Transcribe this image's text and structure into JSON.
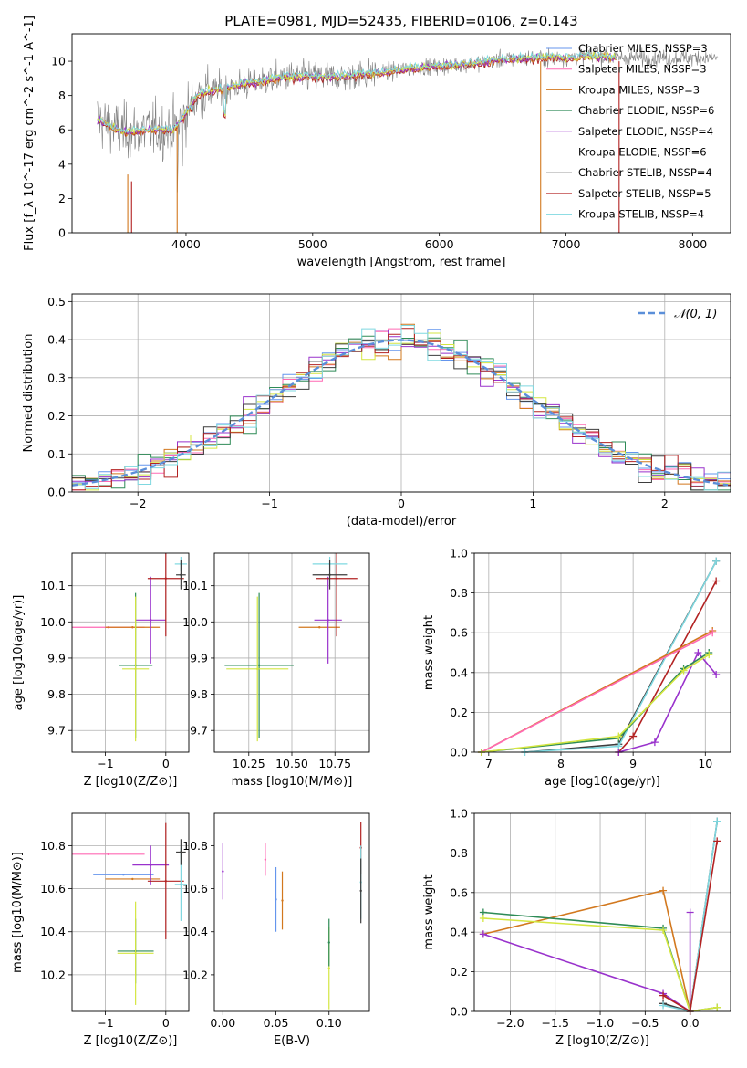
{
  "figure": {
    "title": "PLATE=0981, MJD=52435, FIBERID=0106, z=0.143"
  },
  "colors": {
    "Chabrier MILES": "#6495ed",
    "Salpeter MILES": "#ff69b4",
    "Kroupa MILES": "#d2781e",
    "Chabrier ELODIE": "#2e8b57",
    "Salpeter ELODIE": "#9932cc",
    "Kroupa ELODIE": "#d4e640",
    "Chabrier STELIB": "#3d3d3d",
    "Salpeter STELIB": "#b22222",
    "Kroupa STELIB": "#7fd8e0",
    "data": "#808080",
    "gaussian": "#5b8fd9"
  },
  "chart_data": [
    {
      "id": "spectrum",
      "type": "line",
      "title": "PLATE=0981, MJD=52435, FIBERID=0106, z=0.143",
      "xlabel": "wavelength [Angstrom, rest frame]",
      "ylabel": "Flux [f_λ 10^-17 erg cm^-2 s^-1 A^-1]",
      "xlim": [
        3100,
        8300
      ],
      "ylim": [
        0,
        11.6
      ],
      "xticks": [
        "4000",
        "5000",
        "6000",
        "7000",
        "8000"
      ],
      "yticks": [
        "0",
        "2",
        "4",
        "6",
        "8",
        "10"
      ],
      "legend_position": "right",
      "legend": [
        "Chabrier MILES, NSSP=3",
        "Salpeter MILES, NSSP=3",
        "Kroupa MILES, NSSP=3",
        "Chabrier ELODIE, NSSP=6",
        "Salpeter ELODIE, NSSP=4",
        "Kroupa ELODIE, NSSP=6",
        "Chabrier STELIB, NSSP=4",
        "Salpeter STELIB, NSSP=5",
        "Kroupa STELIB, NSSP=4"
      ],
      "continuum": {
        "x": [
          3300,
          3400,
          3500,
          3600,
          3700,
          3800,
          3900,
          4000,
          4100,
          4300,
          4500,
          4800,
          5000,
          5200,
          5500,
          5800,
          6000,
          6300,
          6500,
          6800,
          7000,
          7200,
          7400
        ],
        "y": [
          6.6,
          6.2,
          5.9,
          5.9,
          6.0,
          6.0,
          6.0,
          7.0,
          8.1,
          8.4,
          8.7,
          9.1,
          9.1,
          9.1,
          9.3,
          9.6,
          9.7,
          9.9,
          10.1,
          10.2,
          10.2,
          10.3,
          10.2
        ]
      },
      "data_span": [
        3300,
        8200
      ]
    },
    {
      "id": "residuals",
      "type": "line",
      "xlabel": "(data-model)/error",
      "ylabel": "Normed distribution",
      "xlim": [
        -2.5,
        2.5
      ],
      "ylim": [
        0,
        0.52
      ],
      "xticks": [
        "−2",
        "−1",
        "0",
        "1",
        "2"
      ],
      "yticks": [
        "0.0",
        "0.1",
        "0.2",
        "0.3",
        "0.4",
        "0.5"
      ],
      "legend": [
        "𝒩(0, 1)"
      ],
      "legend_position": "top-right",
      "grid": true,
      "bin_width": 0.1
    },
    {
      "id": "z-age",
      "type": "scatter",
      "xlabel": "Z [log10(Z/Z⊙)]",
      "ylabel": "age  [log10(age/yr)]",
      "xlim": [
        -1.55,
        0.38
      ],
      "ylim": [
        9.64,
        10.19
      ],
      "xticks": [
        "−1",
        "0"
      ],
      "yticks": [
        "9.7",
        "9.8",
        "9.9",
        "10.0",
        "10.1"
      ],
      "grid": true,
      "points": [
        {
          "model": "Salpeter MILES",
          "x": -0.95,
          "xerr": 0.6,
          "y": 9.985,
          "yerr": 0.0
        },
        {
          "model": "Kroupa MILES",
          "x": -0.55,
          "xerr": 0.45,
          "y": 9.985,
          "yerr": 0.0
        },
        {
          "model": "Salpeter ELODIE",
          "x": -0.25,
          "xerr": 0.25,
          "y": 10.005,
          "yerr": 0.12
        },
        {
          "model": "Chabrier ELODIE",
          "x": -0.5,
          "xerr": 0.28,
          "y": 9.88,
          "yerr": 0.2
        },
        {
          "model": "Kroupa ELODIE",
          "x": -0.5,
          "xerr": 0.22,
          "y": 9.87,
          "yerr": 0.2
        },
        {
          "model": "Salpeter STELIB",
          "x": 0.0,
          "xerr": 0.3,
          "y": 10.12,
          "yerr": 0.16
        },
        {
          "model": "Kroupa STELIB",
          "x": 0.25,
          "xerr": 0.1,
          "y": 10.16,
          "yerr": 0.02
        },
        {
          "model": "Chabrier STELIB",
          "x": 0.25,
          "xerr": 0.08,
          "y": 10.13,
          "yerr": 0.04
        }
      ]
    },
    {
      "id": "mass-age",
      "type": "scatter",
      "xlabel": "mass [log10(M/M⊙)]",
      "ylabel": "",
      "xlim": [
        10.05,
        10.95
      ],
      "ylim": [
        9.64,
        10.19
      ],
      "xticks": [
        "10.25",
        "10.50",
        "10.75"
      ],
      "yticks": [
        "9.7",
        "9.8",
        "9.9",
        "10.0",
        "10.1"
      ],
      "grid": true,
      "points": [
        {
          "model": "Chabrier ELODIE",
          "x": 10.31,
          "xerr": 0.2,
          "y": 9.88,
          "yerr": 0.2
        },
        {
          "model": "Kroupa ELODIE",
          "x": 10.3,
          "xerr": 0.18,
          "y": 9.87,
          "yerr": 0.2
        },
        {
          "model": "Kroupa MILES",
          "x": 10.66,
          "xerr": 0.12,
          "y": 9.985,
          "yerr": 0.0
        },
        {
          "model": "Salpeter ELODIE",
          "x": 10.71,
          "xerr": 0.08,
          "y": 10.005,
          "yerr": 0.12
        },
        {
          "model": "Salpeter STELIB",
          "x": 10.76,
          "xerr": 0.12,
          "y": 10.12,
          "yerr": 0.16
        },
        {
          "model": "Kroupa STELIB",
          "x": 10.72,
          "xerr": 0.1,
          "y": 10.16,
          "yerr": 0.02
        },
        {
          "model": "Chabrier STELIB",
          "x": 10.72,
          "xerr": 0.1,
          "y": 10.13,
          "yerr": 0.04
        }
      ]
    },
    {
      "id": "age-weight",
      "type": "line",
      "xlabel": "age  [log10(age/yr)]",
      "ylabel": "mass weight",
      "xlim": [
        6.8,
        10.35
      ],
      "ylim": [
        0,
        1.0
      ],
      "xticks": [
        "7",
        "8",
        "9",
        "10"
      ],
      "yticks": [
        "0.0",
        "0.2",
        "0.4",
        "0.6",
        "0.8",
        "1.0"
      ],
      "grid": true,
      "series": [
        {
          "model": "Chabrier STELIB",
          "x": [
            7.5,
            8.8,
            10.15
          ],
          "y": [
            0.0,
            0.04,
            0.96
          ]
        },
        {
          "model": "Kroupa STELIB",
          "x": [
            7.5,
            8.8,
            10.15
          ],
          "y": [
            0.0,
            0.03,
            0.96
          ]
        },
        {
          "model": "Salpeter STELIB",
          "x": [
            8.8,
            9.0,
            10.15
          ],
          "y": [
            0.0,
            0.08,
            0.86
          ]
        },
        {
          "model": "Kroupa MILES",
          "x": [
            6.9,
            10.1
          ],
          "y": [
            0.0,
            0.61
          ]
        },
        {
          "model": "Salpeter MILES",
          "x": [
            6.9,
            10.1
          ],
          "y": [
            0.0,
            0.6
          ]
        },
        {
          "model": "Salpeter ELODIE",
          "x": [
            8.8,
            9.3,
            9.9,
            10.15
          ],
          "y": [
            0.0,
            0.05,
            0.5,
            0.39
          ]
        },
        {
          "model": "Chabrier ELODIE",
          "x": [
            6.9,
            8.8,
            9.7,
            10.05
          ],
          "y": [
            0.0,
            0.07,
            0.42,
            0.5
          ]
        },
        {
          "model": "Kroupa ELODIE",
          "x": [
            6.9,
            8.8,
            9.7,
            10.05
          ],
          "y": [
            0.0,
            0.08,
            0.41,
            0.49
          ]
        }
      ]
    },
    {
      "id": "z-mass",
      "type": "scatter",
      "xlabel": "Z [log10(Z/Z⊙)]",
      "ylabel": "mass [log10(M/M⊙)]",
      "xlim": [
        -1.55,
        0.38
      ],
      "ylim": [
        10.03,
        10.95
      ],
      "xticks": [
        "−1",
        "0"
      ],
      "yticks": [
        "10.2",
        "10.4",
        "10.6",
        "10.8"
      ],
      "grid": true,
      "points": [
        {
          "model": "Salpeter MILES",
          "x": -0.95,
          "xerr": 0.6,
          "y": 10.76,
          "yerr": 0.0
        },
        {
          "model": "Chabrier MILES",
          "x": -0.7,
          "xerr": 0.5,
          "y": 10.665,
          "yerr": 0.0
        },
        {
          "model": "Kroupa MILES",
          "x": -0.55,
          "xerr": 0.45,
          "y": 10.645,
          "yerr": 0.0
        },
        {
          "model": "Salpeter ELODIE",
          "x": -0.25,
          "xerr": 0.3,
          "y": 10.71,
          "yerr": 0.09
        },
        {
          "model": "Chabrier ELODIE",
          "x": -0.5,
          "xerr": 0.3,
          "y": 10.31,
          "yerr": 0.15
        },
        {
          "model": "Kroupa ELODIE",
          "x": -0.5,
          "xerr": 0.3,
          "y": 10.3,
          "yerr": 0.24
        },
        {
          "model": "Salpeter STELIB",
          "x": 0.0,
          "xerr": 0.3,
          "y": 10.635,
          "yerr": 0.27
        },
        {
          "model": "Kroupa STELIB",
          "x": 0.25,
          "xerr": 0.1,
          "y": 10.62,
          "yerr": 0.17
        },
        {
          "model": "Chabrier STELIB",
          "x": 0.25,
          "xerr": 0.08,
          "y": 10.77,
          "yerr": 0.06
        }
      ]
    },
    {
      "id": "ebv-mass",
      "type": "scatter",
      "xlabel": "E(B-V)",
      "ylabel": "",
      "xlim": [
        -0.008,
        0.138
      ],
      "ylim": [
        10.03,
        10.95
      ],
      "xticks": [
        "0.00",
        "0.05",
        "0.10"
      ],
      "yticks": [
        "10.2",
        "10.4",
        "10.6",
        "10.8"
      ],
      "grid": false,
      "points": [
        {
          "model": "Salpeter ELODIE",
          "x": 0.0,
          "xerr": 0.0,
          "y": 10.68,
          "yerr": 0.13
        },
        {
          "model": "Salpeter MILES",
          "x": 0.04,
          "xerr": 0.0,
          "y": 10.735,
          "yerr": 0.075
        },
        {
          "model": "Chabrier MILES",
          "x": 0.05,
          "xerr": 0.0,
          "y": 10.55,
          "yerr": 0.15
        },
        {
          "model": "Kroupa MILES",
          "x": 0.056,
          "xerr": 0.0,
          "y": 10.545,
          "yerr": 0.135
        },
        {
          "model": "Kroupa ELODIE",
          "x": 0.1,
          "xerr": 0.0,
          "y": 10.23,
          "yerr": 0.19
        },
        {
          "model": "Chabrier ELODIE",
          "x": 0.1,
          "xerr": 0.0,
          "y": 10.35,
          "yerr": 0.11
        },
        {
          "model": "Salpeter STELIB",
          "x": 0.13,
          "xerr": 0.0,
          "y": 10.79,
          "yerr": 0.12
        },
        {
          "model": "Kroupa STELIB",
          "x": 0.13,
          "xerr": 0.0,
          "y": 10.63,
          "yerr": 0.17
        },
        {
          "model": "Chabrier STELIB",
          "x": 0.13,
          "xerr": 0.0,
          "y": 10.59,
          "yerr": 0.15
        }
      ]
    },
    {
      "id": "z-weight",
      "type": "line",
      "xlabel": "Z [log10(Z/Z⊙)]",
      "ylabel": "mass weight",
      "xlim": [
        -2.4,
        0.45
      ],
      "ylim": [
        0,
        1.0
      ],
      "xticks": [
        "−2.0",
        "−1.5",
        "−1.0",
        "−0.5",
        "0.0"
      ],
      "yticks": [
        "0.0",
        "0.2",
        "0.4",
        "0.6",
        "0.8",
        "1.0"
      ],
      "grid": true,
      "series": [
        {
          "model": "Kroupa MILES",
          "x": [
            -2.3,
            -0.3,
            0.0
          ],
          "y": [
            0.39,
            0.61,
            0.0
          ]
        },
        {
          "model": "Chabrier ELODIE",
          "x": [
            -2.3,
            -0.3,
            0.0,
            0.3
          ],
          "y": [
            0.5,
            0.42,
            0.0,
            0.02
          ]
        },
        {
          "model": "Kroupa ELODIE",
          "x": [
            -2.3,
            -0.3,
            0.0,
            0.3
          ],
          "y": [
            0.47,
            0.41,
            0.0,
            0.02
          ]
        },
        {
          "model": "Salpeter ELODIE",
          "x": [
            -2.3,
            -0.3,
            0.0,
            0.0
          ],
          "y": [
            0.39,
            0.09,
            0.0,
            0.5
          ]
        },
        {
          "model": "Chabrier STELIB",
          "x": [
            -0.3,
            0.0,
            0.3
          ],
          "y": [
            0.04,
            0.0,
            0.96
          ]
        },
        {
          "model": "Kroupa STELIB",
          "x": [
            -0.3,
            0.0,
            0.3
          ],
          "y": [
            0.03,
            0.0,
            0.96
          ]
        },
        {
          "model": "Salpeter STELIB",
          "x": [
            -0.3,
            0.0,
            0.3
          ],
          "y": [
            0.08,
            0.0,
            0.86
          ]
        }
      ]
    }
  ]
}
